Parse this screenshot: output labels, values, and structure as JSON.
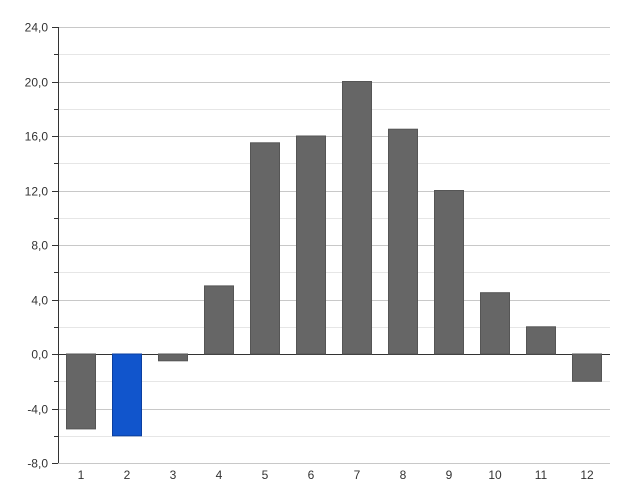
{
  "chart_data": {
    "type": "bar",
    "categories": [
      "1",
      "2",
      "3",
      "4",
      "5",
      "6",
      "7",
      "8",
      "9",
      "10",
      "11",
      "12"
    ],
    "values": [
      -5.5,
      -6.0,
      -0.5,
      5.0,
      15.5,
      16.0,
      20.0,
      16.5,
      12.0,
      4.5,
      2.0,
      -2.0
    ],
    "highlight_index": 1,
    "ylim": [
      -8,
      24
    ],
    "yticks": [
      -8,
      -4,
      0,
      4,
      8,
      12,
      16,
      20,
      24
    ],
    "ytick_labels": [
      "-8,0",
      "-4,0",
      "0,0",
      "4,0",
      "8,0",
      "12,0",
      "16,0",
      "20,0",
      "24,0"
    ],
    "grid": true,
    "title": "",
    "xlabel": "",
    "ylabel": "",
    "colors": {
      "bar": "#666666",
      "highlight": "#1155cc",
      "grid_major": "#c8c8c8",
      "grid_minor": "#e6e6e6",
      "axis": "#333333"
    }
  }
}
